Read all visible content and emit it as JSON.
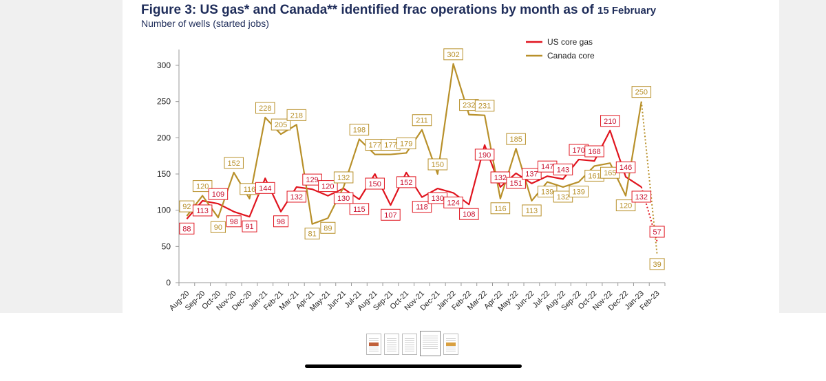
{
  "title": "Figure 3: US gas* and Canada** identified frac operations by month as of",
  "title_date": "15 February",
  "subtitle": "Number of wells (started jobs)",
  "colors": {
    "us": "#e0141e",
    "canada": "#b8902a",
    "page_bg": "#f0f0f0"
  },
  "thumbnails": [
    "page-1-thumb",
    "page-2-thumb",
    "page-3-thumb",
    "page-4-thumb",
    "page-5-thumb"
  ],
  "selected_thumbnail": 3,
  "chart_data": {
    "type": "line",
    "title": "US gas* and Canada** identified frac operations by month as of 15 February",
    "ylabel": "Number of wells (started jobs)",
    "ylim": [
      0,
      300
    ],
    "yticks": [
      0,
      50,
      100,
      150,
      200,
      250,
      300
    ],
    "legend_position": "top-right",
    "categories": [
      "Aug-20",
      "Sep-20",
      "Oct-20",
      "Nov-20",
      "Dec-20",
      "Jan-21",
      "Feb-21",
      "Mar-21",
      "Apr-21",
      "May-21",
      "Jun-21",
      "Jul-21",
      "Aug-21",
      "Sep-21",
      "Oct-21",
      "Nov-21",
      "Dec-21",
      "Jan-22",
      "Feb-22",
      "Mar-22",
      "Apr-22",
      "May-22",
      "Jun-22",
      "Jul-22",
      "Aug-22",
      "Sep-22",
      "Oct-22",
      "Nov-22",
      "Dec-22",
      "Jan-23",
      "Feb-23"
    ],
    "series": [
      {
        "name": "US core gas",
        "color": "#e0141e",
        "values": [
          88,
          113,
          109,
          98,
          91,
          144,
          98,
          132,
          129,
          120,
          130,
          115,
          150,
          107,
          152,
          118,
          130,
          124,
          108,
          190,
          132,
          151,
          137,
          147,
          143,
          170,
          168,
          210,
          146,
          132,
          57
        ],
        "labels": [
          "88",
          "113",
          "109",
          "98",
          "91",
          "144",
          "98",
          "132",
          "129",
          "120",
          "130",
          "115",
          "150",
          "107",
          "152",
          "118",
          "130",
          "124",
          "108",
          "190",
          "132",
          "151",
          "137",
          "147",
          "143",
          "170",
          "168",
          "210",
          "146",
          "132",
          "57"
        ],
        "dotted_last": true
      },
      {
        "name": "Canada core",
        "color": "#b8902a",
        "values": [
          92,
          120,
          90,
          152,
          116,
          228,
          205,
          218,
          81,
          89,
          132,
          198,
          177,
          177,
          179,
          211,
          150,
          302,
          232,
          231,
          116,
          185,
          113,
          139,
          132,
          139,
          161,
          165,
          120,
          250,
          39
        ],
        "labels": [
          "92",
          "120",
          "90",
          "152",
          "116",
          "228",
          "205",
          "218",
          "81",
          "89",
          "132",
          "198",
          "177",
          "177",
          "179",
          "211",
          "150",
          "302",
          "232",
          "231",
          "116",
          "185",
          "113",
          "139",
          "132",
          "139",
          "161",
          "165",
          "120",
          "250",
          "39"
        ],
        "dotted_last": true
      }
    ]
  }
}
